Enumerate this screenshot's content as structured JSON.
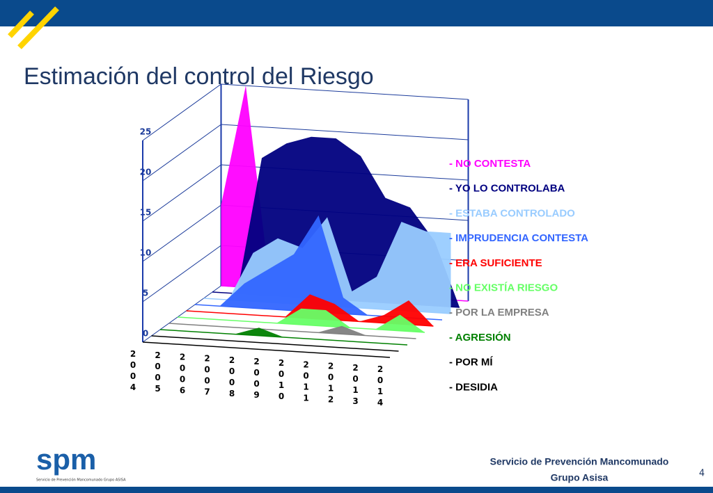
{
  "slide": {
    "title": "Estimación del control del Riesgo",
    "logo": "spm",
    "logo_caption": "Servicio de Prevención Mancomunado Grupo ASISA",
    "footer": [
      "Servicio de Prevención Mancomunado",
      "Grupo Asisa"
    ],
    "page_number": "4"
  },
  "chart_data": {
    "type": "area3d",
    "categories": [
      "2004",
      "2005",
      "2006",
      "2007",
      "2008",
      "2009",
      "2010",
      "2011",
      "2012",
      "2013",
      "2014"
    ],
    "ylim": [
      0,
      25
    ],
    "yticks": [
      0,
      5,
      10,
      15,
      20,
      25
    ],
    "grid": true,
    "legend": "right",
    "series": [
      {
        "name": "- NO CONTESTA",
        "color": "#ff00ff",
        "values": [
          10,
          25,
          0,
          0,
          0,
          0,
          0,
          0,
          0,
          0,
          0
        ]
      },
      {
        "name": "- YO LO CONTROLABA",
        "color": "#000080",
        "values": [
          0,
          0,
          17,
          19,
          20,
          20,
          18,
          13,
          12,
          8,
          0
        ]
      },
      {
        "name": "- ESTABA CONTROLADO",
        "color": "#99ccff",
        "values": [
          0,
          0,
          6,
          8,
          7,
          11,
          2,
          4,
          11,
          10,
          10
        ]
      },
      {
        "name": "- IMPRUDENCIA CONTESTA",
        "color": "#3366ff",
        "values": [
          0,
          0,
          3,
          5,
          7,
          12,
          2,
          0,
          0,
          0,
          0
        ]
      },
      {
        "name": "- ERA SUFICIENTE",
        "color": "#ff0000",
        "values": [
          0,
          0,
          0,
          0,
          0,
          3,
          2,
          0,
          1,
          3,
          0
        ]
      },
      {
        "name": "- NO EXISTÍA RIESGO",
        "color": "#66ff66",
        "values": [
          0,
          0,
          0,
          0,
          0,
          2,
          2,
          0,
          0,
          2,
          0
        ]
      },
      {
        "name": "- POR LA EMPRESA",
        "color": "#808080",
        "values": [
          0,
          0,
          0,
          0,
          0,
          0,
          0,
          1,
          0,
          0,
          0
        ]
      },
      {
        "name": "- AGRESIÓN",
        "color": "#008000",
        "values": [
          0,
          0,
          0,
          0,
          1,
          0,
          0,
          0,
          0,
          0,
          0
        ]
      },
      {
        "name": "- POR MÍ",
        "color": "#000000",
        "values": [
          0,
          0,
          0,
          0,
          0,
          0,
          0,
          0,
          0,
          0,
          0
        ]
      },
      {
        "name": "- DESIDIA",
        "color": "#000000",
        "values": [
          0,
          0,
          0,
          0,
          0,
          0,
          0,
          0,
          0,
          0,
          0
        ]
      }
    ]
  }
}
